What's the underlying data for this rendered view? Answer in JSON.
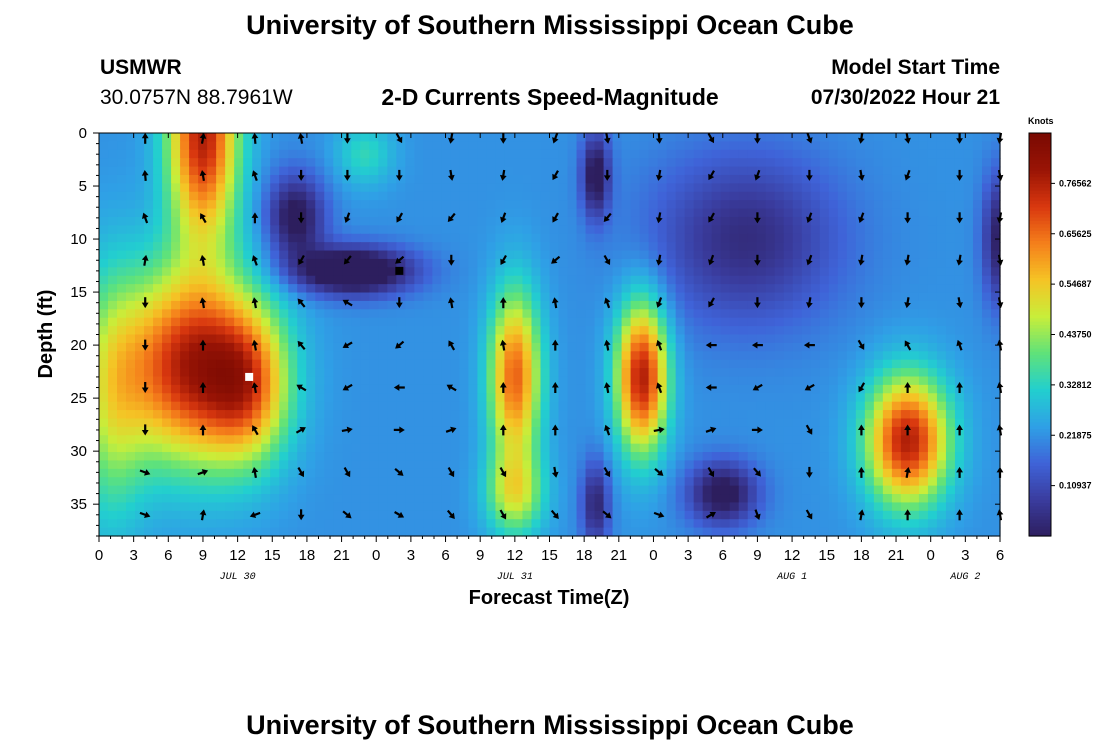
{
  "page": {
    "title_top": "University of Southern Mississippi Ocean Cube",
    "title_bottom": "University of Southern Mississippi Ocean Cube",
    "station_id": "USMWR",
    "station_coords": "30.0757N  88.7961W",
    "plot_subtitle": "2-D Currents Speed-Magnitude",
    "model_start_label": "Model Start Time",
    "model_start_value": "07/30/2022 Hour 21"
  },
  "colors": {
    "scale": [
      "#2d1e5e",
      "#3a3c9e",
      "#3f63d8",
      "#2fa0e6",
      "#22cfcf",
      "#5fe27a",
      "#c8ee3a",
      "#f5c425",
      "#f57f1b",
      "#d9380f",
      "#9a1405",
      "#7a0a02"
    ],
    "arrow": "#000000",
    "marker_white": "#ffffff",
    "marker_black": "#000000"
  },
  "chart_data": {
    "type": "heatmap",
    "title": "2-D Currents Speed-Magnitude",
    "xlabel": "Forecast Time(Z)",
    "ylabel": "Depth (ft)",
    "xlim": [
      0,
      78
    ],
    "ylim": [
      0,
      38
    ],
    "x_ticks": [
      0,
      3,
      6,
      9,
      12,
      15,
      18,
      21,
      24,
      27,
      30,
      33,
      36,
      39,
      42,
      45,
      48,
      51,
      54,
      57,
      60,
      63,
      66,
      69,
      72,
      75,
      78
    ],
    "x_tick_labels": [
      "0",
      "3",
      "6",
      "9",
      "12",
      "15",
      "18",
      "21",
      "0",
      "3",
      "6",
      "9",
      "12",
      "15",
      "18",
      "21",
      "0",
      "3",
      "6",
      "9",
      "12",
      "15",
      "18",
      "21",
      "0",
      "3",
      "6"
    ],
    "date_labels": [
      {
        "x": 12,
        "label": "JUL 30"
      },
      {
        "x": 36,
        "label": "JUL 31"
      },
      {
        "x": 60,
        "label": "AUG 1"
      },
      {
        "x": 75,
        "label": "AUG 2"
      }
    ],
    "y_ticks": [
      0,
      5,
      10,
      15,
      20,
      25,
      30,
      35
    ],
    "y_tick_labels": [
      "0",
      "5",
      "10",
      "15",
      "20",
      "25",
      "30",
      "35"
    ],
    "colorbar": {
      "units": "Knots",
      "min": 0.0,
      "max": 0.875,
      "tick_values": [
        0.109375,
        0.21875,
        0.328125,
        0.4375,
        0.546875,
        0.65625,
        0.765625
      ],
      "tick_labels": [
        "0.10937",
        "0.21875",
        "0.32812",
        "0.43750",
        "0.54687",
        "0.65625",
        "0.76562"
      ]
    },
    "speed_blobs": [
      {
        "x": 9,
        "y": 0,
        "sx": 3,
        "sy": 10,
        "v": 0.55
      },
      {
        "x": 8,
        "y": 22,
        "sx": 6,
        "sy": 9,
        "v": 0.55
      },
      {
        "x": 13,
        "y": 24,
        "sx": 3.5,
        "sy": 7,
        "v": 0.3
      },
      {
        "x": 1,
        "y": 25,
        "sx": 3,
        "sy": 12,
        "v": 0.2
      },
      {
        "x": 22,
        "y": 13,
        "sx": 5,
        "sy": 2.2,
        "v": -0.35
      },
      {
        "x": 17,
        "y": 8,
        "sx": 2.5,
        "sy": 4,
        "v": -0.25
      },
      {
        "x": 23,
        "y": 2,
        "sx": 2.5,
        "sy": 3,
        "v": 0.12
      },
      {
        "x": 36,
        "y": 23,
        "sx": 2.2,
        "sy": 8,
        "v": 0.45
      },
      {
        "x": 36,
        "y": 34,
        "sx": 2.5,
        "sy": 4,
        "v": 0.25
      },
      {
        "x": 47,
        "y": 23,
        "sx": 2.2,
        "sy": 7,
        "v": 0.55
      },
      {
        "x": 43,
        "y": 4,
        "sx": 1.2,
        "sy": 4,
        "v": -0.25
      },
      {
        "x": 43,
        "y": 35,
        "sx": 1.2,
        "sy": 4,
        "v": -0.2
      },
      {
        "x": 54,
        "y": 34,
        "sx": 3,
        "sy": 3,
        "v": -0.25
      },
      {
        "x": 56,
        "y": 10,
        "sx": 8,
        "sy": 8,
        "v": -0.18
      },
      {
        "x": 70,
        "y": 29,
        "sx": 3.5,
        "sy": 6,
        "v": 0.55
      },
      {
        "x": 78,
        "y": 10,
        "sx": 1.5,
        "sy": 6,
        "v": -0.22
      }
    ],
    "speed_base": 0.22,
    "vector_x": [
      4,
      9,
      13.5,
      17.5,
      21.5,
      26,
      30.5,
      35,
      39.5,
      44,
      48.5,
      53,
      57,
      61.5,
      66,
      70,
      74.5,
      78
    ],
    "vector_y": [
      0.5,
      4,
      8,
      12,
      16,
      20,
      24,
      28,
      32,
      36
    ],
    "vector_angles_deg": [
      [
        90,
        80,
        95,
        100,
        270,
        300,
        260,
        270,
        250,
        280,
        275,
        300,
        270,
        290,
        260,
        280,
        270,
        260
      ],
      [
        95,
        100,
        110,
        270,
        270,
        270,
        280,
        260,
        240,
        270,
        260,
        240,
        250,
        270,
        280,
        250,
        270,
        280
      ],
      [
        110,
        120,
        90,
        270,
        250,
        240,
        230,
        250,
        240,
        230,
        260,
        240,
        270,
        250,
        250,
        270,
        270,
        260
      ],
      [
        80,
        100,
        110,
        240,
        230,
        220,
        270,
        240,
        220,
        300,
        260,
        250,
        270,
        250,
        260,
        260,
        260,
        280
      ],
      [
        270,
        100,
        100,
        130,
        150,
        270,
        100,
        90,
        100,
        110,
        250,
        240,
        270,
        260,
        270,
        260,
        280,
        280
      ],
      [
        270,
        90,
        100,
        130,
        210,
        220,
        120,
        100,
        90,
        100,
        110,
        180,
        180,
        180,
        300,
        120,
        110,
        100
      ],
      [
        270,
        90,
        100,
        150,
        210,
        180,
        150,
        90,
        90,
        100,
        110,
        180,
        210,
        210,
        240,
        90,
        90,
        100
      ],
      [
        270,
        90,
        120,
        30,
        10,
        0,
        20,
        90,
        90,
        110,
        10,
        20,
        0,
        300,
        90,
        90,
        90,
        100
      ],
      [
        340,
        20,
        100,
        300,
        300,
        320,
        300,
        300,
        280,
        300,
        320,
        300,
        310,
        270,
        90,
        80,
        90,
        90
      ],
      [
        340,
        80,
        200,
        270,
        320,
        330,
        310,
        300,
        310,
        320,
        340,
        30,
        290,
        300,
        80,
        90,
        90,
        100
      ]
    ],
    "markers": [
      {
        "x": 13,
        "y": 23,
        "color": "white"
      },
      {
        "x": 26,
        "y": 13,
        "color": "black"
      }
    ]
  }
}
